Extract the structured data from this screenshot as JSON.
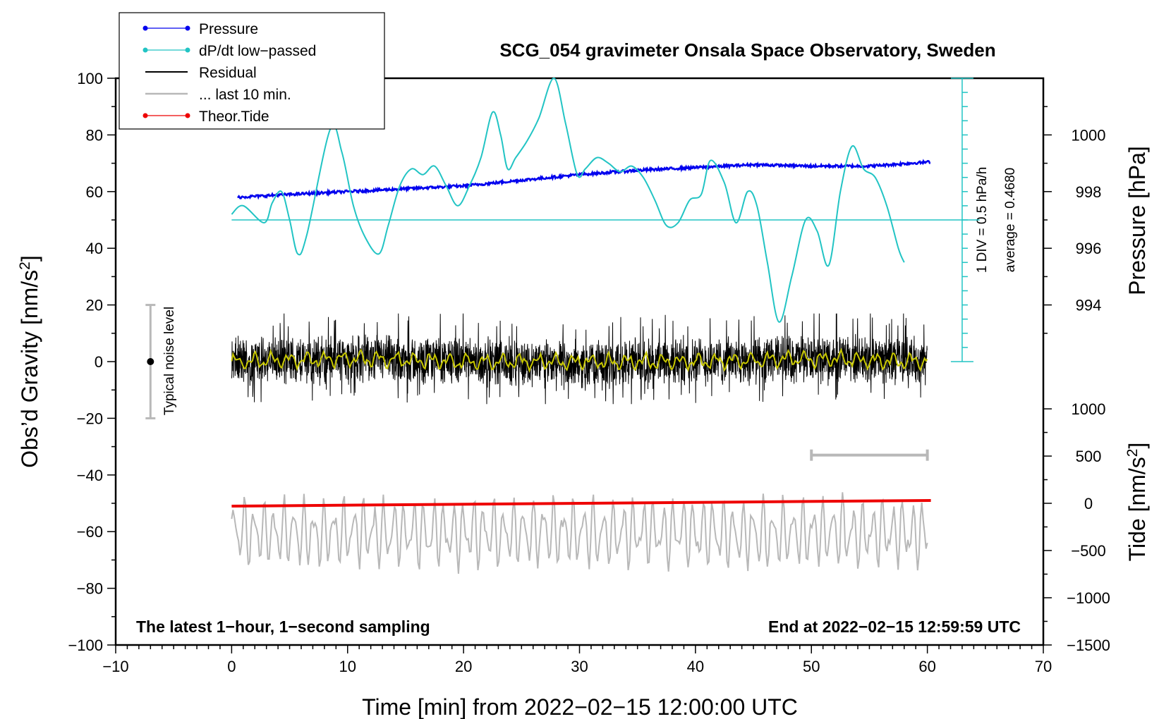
{
  "chart_data": {
    "type": "line",
    "title": "SCG_054 gravimeter Onsala Space Observatory, Sweden",
    "xlabel": "Time [min] from 2022−02−15 12:00:00 UTC",
    "ylabel": "Obs’d Gravity [nm/s",
    "ylabel_sup": "2",
    "ylabel_tail": "]",
    "y2label": "Pressure [hPa]",
    "y3label": "Tide [nm/s",
    "y3label_sup": "2",
    "y3label_tail": "]",
    "xlim": [
      -10,
      70
    ],
    "ylim": [
      -100,
      100
    ],
    "x_ticks": [
      "−10",
      "0",
      "10",
      "20",
      "30",
      "40",
      "50",
      "60",
      "70"
    ],
    "y_ticks": [
      "100",
      "80",
      "60",
      "40",
      "20",
      "0",
      "−20",
      "−40",
      "−60",
      "−80",
      "−100"
    ],
    "pressure_axis": {
      "ticks": [
        "1000",
        "998",
        "996",
        "994"
      ],
      "values": [
        1000,
        998,
        996,
        994
      ],
      "ref_value": 998,
      "ref_gravity": 60,
      "nm_per_hPa": 10
    },
    "tide_axis": {
      "ticks": [
        "1000",
        "500",
        "0",
        "−500",
        "−1000",
        "−1500"
      ],
      "values": [
        1000,
        500,
        0,
        -500,
        -1000,
        -1500
      ],
      "ref_gravity": -50,
      "nm_per_unit": 0.03333
    },
    "legend": [
      {
        "label": "Pressure",
        "color": "#0000ee",
        "marker": true
      },
      {
        "label": "dP/dt low−passed",
        "color": "#22c4c4",
        "marker": true
      },
      {
        "label": "Residual",
        "color": "#000000",
        "marker": false
      },
      {
        "label": "... last 10 min.",
        "color": "#b8b8b8",
        "marker": false
      },
      {
        "label": "Theor.Tide",
        "color": "#ee0000",
        "marker": true
      }
    ],
    "annotations": {
      "left_note": "The latest 1−hour, 1−second sampling",
      "right_note": "End at 2022−02−15 12:59:59 UTC",
      "noise_label": "Typical noise level",
      "div_note": "1 DIV = 0.5 hPa/h",
      "avg_note": "average = 0.4680"
    },
    "noise_bar": {
      "x": -7,
      "ymin": -20,
      "ymax": 20,
      "center": 0
    },
    "ten_min_bar": {
      "x_start": 50,
      "x_end": 60,
      "y": -33
    },
    "dpdt_scale": {
      "x": 63,
      "ymin": 0,
      "ymax": 100,
      "baseline_y": 50,
      "divisions": 20
    },
    "series": [
      {
        "name": "Pressure",
        "color": "#0000ee",
        "unit": "hPa",
        "x": [
          0.5,
          5,
          10,
          15,
          20,
          25,
          30,
          35,
          40,
          45,
          50,
          55,
          60.3
        ],
        "y": [
          997.8,
          997.9,
          998.0,
          998.1,
          998.2,
          998.4,
          998.6,
          998.75,
          998.85,
          998.95,
          998.9,
          998.9,
          999.05
        ]
      },
      {
        "name": "dP/dt low-passed",
        "color": "#22c4c4",
        "unit": "nm/s2 (plot units)",
        "x": [
          0,
          1,
          2.8,
          3.5,
          4.3,
          5,
          5.7,
          6.5,
          8.5,
          9.5,
          10.5,
          11.5,
          12.7,
          13.5,
          14.5,
          15.5,
          16.5,
          17.5,
          18.5,
          19.5,
          20.5,
          21.5,
          22.5,
          23.2,
          23.8,
          24.5,
          25.5,
          26.5,
          27.8,
          28.8,
          29.8,
          30.5,
          31.5,
          32.5,
          33.5,
          34.5,
          35.5,
          36.5,
          37.5,
          38.5,
          39.5,
          40.5,
          41.3,
          42.5,
          43.5,
          44.5,
          45.3,
          46.2,
          47.2,
          48.3,
          49.5,
          50.5,
          51.5,
          52.5,
          53.5,
          54.5,
          55.5,
          56.5,
          57.5,
          58
        ],
        "y": [
          52,
          55,
          49,
          56,
          60,
          50,
          38,
          45,
          82,
          74,
          55,
          44,
          38,
          48,
          62,
          68,
          66,
          69,
          62,
          55,
          62,
          72,
          88,
          80,
          68,
          72,
          78,
          86,
          100,
          84,
          66,
          68,
          72,
          70,
          67,
          69,
          65,
          57,
          48,
          49,
          57,
          59,
          71,
          63,
          49,
          60,
          55,
          35,
          14,
          30,
          50,
          46,
          34,
          60,
          76,
          68,
          65,
          55,
          40,
          35
        ]
      },
      {
        "name": "Residual",
        "color": "#000000",
        "unit": "nm/s2",
        "x": [
          0,
          10,
          20,
          30,
          40,
          50,
          60
        ],
        "y": [
          0,
          1,
          0,
          -1,
          0,
          1,
          0
        ],
        "envelope": [
          -15,
          17
        ]
      },
      {
        "name": "Residual low-pass",
        "color": "#c8c800",
        "unit": "nm/s2",
        "x": [
          0,
          10,
          20,
          30,
          40,
          50,
          60
        ],
        "y": [
          0,
          1,
          0,
          0,
          0,
          1,
          0
        ]
      },
      {
        "name": "... last 10 min.",
        "color": "#b8b8b8",
        "unit": "nm/s2",
        "x": [
          0,
          10,
          20,
          30,
          40,
          50,
          60
        ],
        "y": [
          -60,
          -60,
          -60,
          -60,
          -60,
          -60,
          -60
        ],
        "envelope": [
          -76,
          -45
        ]
      },
      {
        "name": "Theor.Tide",
        "color": "#ee0000",
        "unit": "nm/s2",
        "x": [
          0,
          60.3
        ],
        "y": [
          -30,
          30
        ]
      }
    ]
  }
}
